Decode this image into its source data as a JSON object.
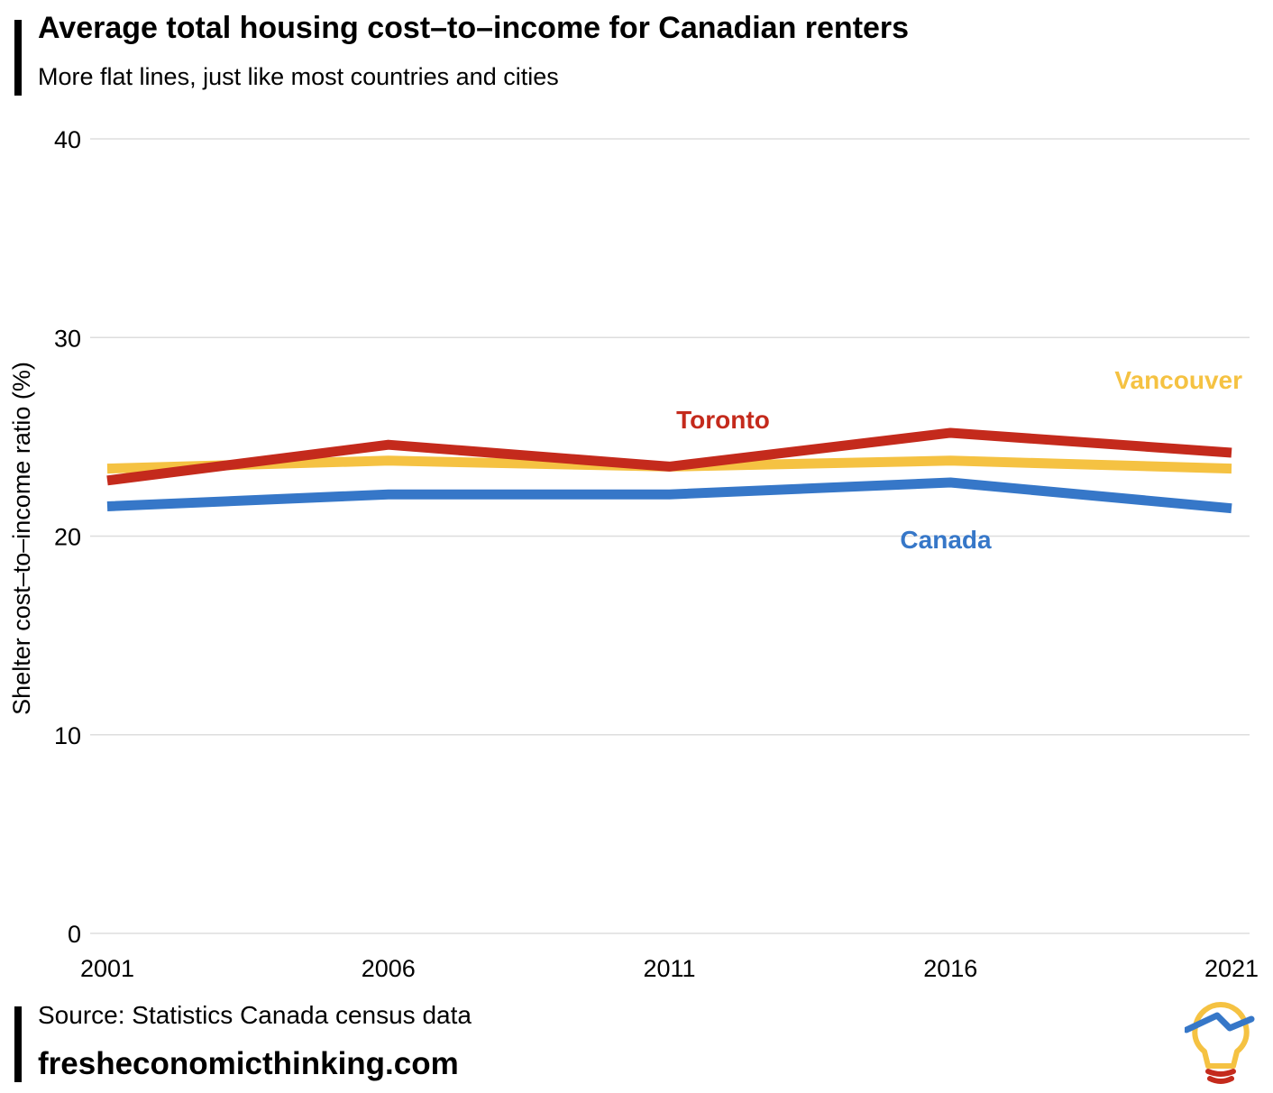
{
  "header": {
    "title": "Average total housing cost–to–income for Canadian renters",
    "subtitle": "More flat lines, just like most countries and cities"
  },
  "footer": {
    "source": "Source: Statistics Canada census data",
    "site": "fresheconomicthinking.com"
  },
  "colors": {
    "toronto": "#c42a1c",
    "vancouver": "#f5c242",
    "canada": "#3677c8",
    "grid": "#dddddd"
  },
  "logo": {
    "icon": "lightbulb-trend-icon"
  },
  "chart_data": {
    "type": "line",
    "title": "Average total housing cost–to–income for Canadian renters",
    "subtitle": "More flat lines, just like most countries and cities",
    "xlabel": "",
    "ylabel": "Shelter cost–to–income ratio (%)",
    "x": [
      "2001",
      "2006",
      "2011",
      "2016",
      "2021"
    ],
    "ylim": [
      0,
      40
    ],
    "yticks": [
      "0",
      "10",
      "20",
      "30",
      "40"
    ],
    "grid": true,
    "legend": "direct labels",
    "series": [
      {
        "name": "Vancouver",
        "color": "#f5c242",
        "values": [
          23.4,
          23.8,
          23.5,
          23.8,
          23.4
        ]
      },
      {
        "name": "Toronto",
        "color": "#c42a1c",
        "values": [
          22.8,
          24.6,
          23.5,
          25.2,
          24.2
        ]
      },
      {
        "name": "Canada",
        "color": "#3677c8",
        "values": [
          21.5,
          22.1,
          22.1,
          22.7,
          21.4
        ]
      }
    ]
  }
}
